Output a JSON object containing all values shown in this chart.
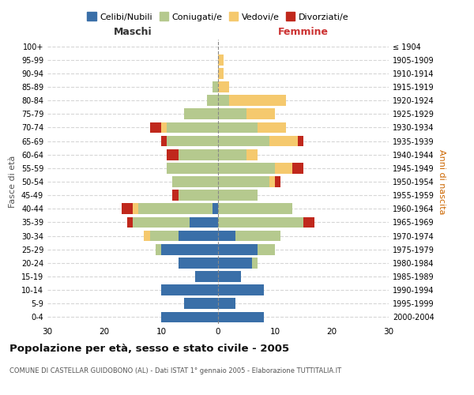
{
  "age_groups": [
    "0-4",
    "5-9",
    "10-14",
    "15-19",
    "20-24",
    "25-29",
    "30-34",
    "35-39",
    "40-44",
    "45-49",
    "50-54",
    "55-59",
    "60-64",
    "65-69",
    "70-74",
    "75-79",
    "80-84",
    "85-89",
    "90-94",
    "95-99",
    "100+"
  ],
  "birth_years": [
    "2000-2004",
    "1995-1999",
    "1990-1994",
    "1985-1989",
    "1980-1984",
    "1975-1979",
    "1970-1974",
    "1965-1969",
    "1960-1964",
    "1955-1959",
    "1950-1954",
    "1945-1949",
    "1940-1944",
    "1935-1939",
    "1930-1934",
    "1925-1929",
    "1920-1924",
    "1915-1919",
    "1910-1914",
    "1905-1909",
    "≤ 1904"
  ],
  "males": {
    "celibi": [
      10,
      6,
      10,
      4,
      7,
      10,
      7,
      5,
      1,
      0,
      0,
      0,
      0,
      0,
      0,
      0,
      0,
      0,
      0,
      0,
      0
    ],
    "coniugati": [
      0,
      0,
      0,
      0,
      0,
      1,
      5,
      10,
      13,
      7,
      8,
      9,
      7,
      9,
      9,
      6,
      2,
      1,
      0,
      0,
      0
    ],
    "vedovi": [
      0,
      0,
      0,
      0,
      0,
      0,
      1,
      0,
      1,
      0,
      0,
      0,
      0,
      0,
      1,
      0,
      0,
      0,
      0,
      0,
      0
    ],
    "divorziati": [
      0,
      0,
      0,
      0,
      0,
      0,
      0,
      1,
      2,
      1,
      0,
      0,
      2,
      1,
      2,
      0,
      0,
      0,
      0,
      0,
      0
    ]
  },
  "females": {
    "nubili": [
      8,
      3,
      8,
      4,
      6,
      7,
      3,
      0,
      0,
      0,
      0,
      0,
      0,
      0,
      0,
      0,
      0,
      0,
      0,
      0,
      0
    ],
    "coniugate": [
      0,
      0,
      0,
      0,
      1,
      3,
      8,
      15,
      13,
      7,
      9,
      10,
      5,
      9,
      7,
      5,
      2,
      0,
      0,
      0,
      0
    ],
    "vedove": [
      0,
      0,
      0,
      0,
      0,
      0,
      0,
      0,
      0,
      0,
      1,
      3,
      2,
      5,
      5,
      5,
      10,
      2,
      1,
      1,
      0
    ],
    "divorziate": [
      0,
      0,
      0,
      0,
      0,
      0,
      0,
      2,
      0,
      0,
      1,
      2,
      0,
      1,
      0,
      0,
      0,
      0,
      0,
      0,
      0
    ]
  },
  "colors": {
    "celibi": "#3a6fa8",
    "coniugati": "#b5c98e",
    "vedovi": "#f5c96e",
    "divorziati": "#c0281c"
  },
  "xlim": 30,
  "title": "Popolazione per età, sesso e stato civile - 2005",
  "subtitle": "COMUNE DI CASTELLAR GUIDOBONO (AL) - Dati ISTAT 1° gennaio 2005 - Elaborazione TUTTITALIA.IT",
  "xlabel_left": "Maschi",
  "xlabel_right": "Femmine",
  "ylabel_left": "Fasce di età",
  "ylabel_right": "Anni di nascita",
  "legend_labels": [
    "Celibi/Nubili",
    "Coniugati/e",
    "Vedovi/e",
    "Divorziati/e"
  ]
}
